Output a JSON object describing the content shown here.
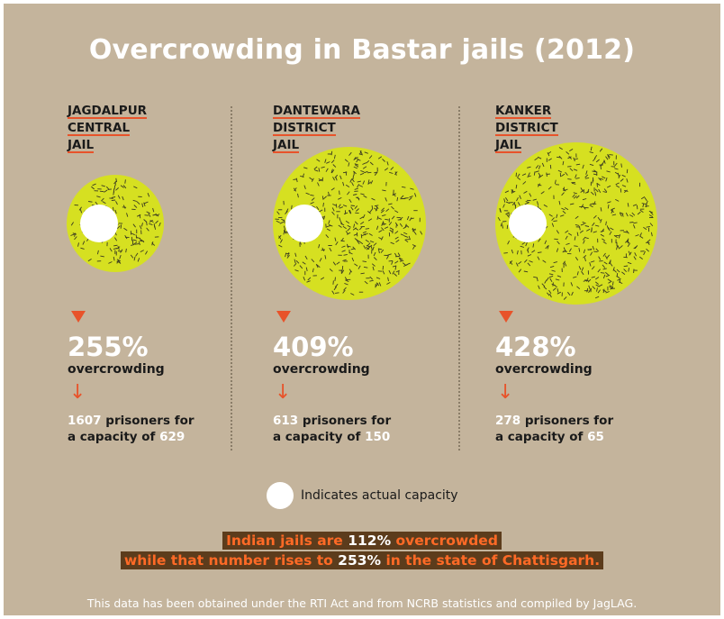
{
  "title": "Overcrowding in Bastar jails (2012)",
  "chart_data": {
    "type": "bubble",
    "title": "Overcrowding in Bastar jails (2012)",
    "jails": [
      {
        "name_lines": [
          "JAGDALPUR",
          "CENTRAL",
          "JAIL"
        ],
        "overcrowding_pct": "255%",
        "overcrowding_label": "overcrowding",
        "prisoners": 1607,
        "capacity": 629
      },
      {
        "name_lines": [
          "DANTEWARA",
          "DISTRICT",
          "JAIL"
        ],
        "overcrowding_pct": "409%",
        "overcrowding_label": "overcrowding",
        "prisoners": 613,
        "capacity": 150
      },
      {
        "name_lines": [
          "KANKER",
          "DISTRICT",
          "JAIL"
        ],
        "overcrowding_pct": "428%",
        "overcrowding_label": "overcrowding",
        "prisoners": 278,
        "capacity": 65
      }
    ]
  },
  "stats_text": {
    "prisoners_for": "prisoners for",
    "capacity_of": "a capacity of"
  },
  "legend": {
    "label": "Indicates actual capacity"
  },
  "highlight": {
    "line1_a": "Indian jails are ",
    "line1_b": "112%",
    "line1_c": " overcrowded",
    "line2_a": "while that number rises to ",
    "line2_b": "253%",
    "line2_c": " in the state of Chattisgarh."
  },
  "footer": "This data has been obtained under the RTI Act and from NCRB statistics and compiled by JagLAG.",
  "colors": {
    "background": "#c4b49c",
    "bubble": "#d6e021",
    "accent": "#e8532a",
    "highlight_box": "#5c3c1c"
  }
}
